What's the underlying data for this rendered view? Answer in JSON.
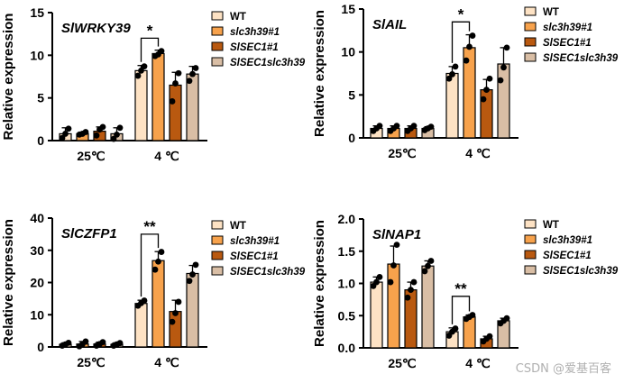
{
  "legend": [
    "WT",
    "slc3h39#1",
    "SlSEC1#1",
    "SlSEC1slc3h39"
  ],
  "colors": [
    "#fde2c4",
    "#f7a24c",
    "#b95910",
    "#d9bea5"
  ],
  "watermark": "CSDN @爱基百客",
  "chart_data": [
    {
      "type": "bar",
      "title": "SlWRKY39",
      "ylabel": "Relative expression",
      "categories": [
        "25℃",
        "4 ℃"
      ],
      "ylim": [
        0,
        15
      ],
      "yticks": [
        0,
        5,
        10,
        15
      ],
      "series": [
        {
          "name": "WT",
          "values": [
            0.8,
            8.2
          ],
          "err": [
            0.7,
            0.6
          ],
          "points": [
            [
              0.3,
              0.8,
              1.4
            ],
            [
              7.6,
              8.2,
              8.7
            ]
          ]
        },
        {
          "name": "slc3h39#1",
          "values": [
            0.8,
            10.2
          ],
          "err": [
            0.2,
            0.4
          ],
          "points": [
            [
              0.7,
              0.8,
              1.0
            ],
            [
              9.9,
              10.1,
              10.5
            ]
          ]
        },
        {
          "name": "SlSEC1#1",
          "values": [
            1.1,
            6.5
          ],
          "err": [
            0.5,
            1.5
          ],
          "points": [
            [
              0.6,
              1.3,
              1.6
            ],
            [
              4.6,
              6.7,
              7.9
            ]
          ]
        },
        {
          "name": "SlSEC1slc3h39",
          "values": [
            0.8,
            7.8
          ],
          "err": [
            0.7,
            0.9
          ],
          "points": [
            [
              0.2,
              0.7,
              1.5
            ],
            [
              7.0,
              7.8,
              8.5
            ]
          ]
        }
      ],
      "significance": [
        {
          "label": "*",
          "group": 1,
          "from": 0,
          "to": 1,
          "y": 12.0
        }
      ]
    },
    {
      "type": "bar",
      "title": "SlAIL",
      "ylabel": "Relative expression",
      "categories": [
        "25℃",
        "4 ℃"
      ],
      "ylim": [
        0,
        15
      ],
      "yticks": [
        0,
        5,
        10,
        15
      ],
      "series": [
        {
          "name": "WT",
          "values": [
            1.1,
            7.5
          ],
          "err": [
            0.3,
            0.8
          ],
          "points": [
            [
              0.8,
              1.1,
              1.4
            ],
            [
              6.9,
              7.4,
              8.3
            ]
          ]
        },
        {
          "name": "slc3h39#1",
          "values": [
            1.1,
            10.5
          ],
          "err": [
            0.3,
            1.5
          ],
          "points": [
            [
              0.8,
              1.1,
              1.4
            ],
            [
              9.0,
              10.6,
              11.9
            ]
          ]
        },
        {
          "name": "SlSEC1#1",
          "values": [
            1.1,
            5.6
          ],
          "err": [
            0.3,
            1.2
          ],
          "points": [
            [
              0.8,
              1.1,
              1.4
            ],
            [
              4.5,
              5.6,
              6.9
            ]
          ]
        },
        {
          "name": "SlSEC1slc3h39",
          "values": [
            1.1,
            8.6
          ],
          "err": [
            0.2,
            1.9
          ],
          "points": [
            [
              0.9,
              1.1,
              1.3
            ],
            [
              6.7,
              8.2,
              10.5
            ]
          ]
        }
      ],
      "significance": [
        {
          "label": "*",
          "group": 1,
          "from": 0,
          "to": 1,
          "y": 13.5
        }
      ]
    },
    {
      "type": "bar",
      "title": "SlCZFP1",
      "ylabel": "Relative expression",
      "categories": [
        "25℃",
        "4 ℃"
      ],
      "ylim": [
        0,
        40
      ],
      "yticks": [
        0,
        10,
        20,
        30,
        40
      ],
      "series": [
        {
          "name": "WT",
          "values": [
            0.8,
            13.5
          ],
          "err": [
            0.5,
            1.0
          ],
          "points": [
            [
              0.4,
              0.8,
              1.3
            ],
            [
              12.8,
              13.6,
              14.4
            ]
          ]
        },
        {
          "name": "slc3h39#1",
          "values": [
            0.9,
            26.8
          ],
          "err": [
            0.8,
            2.8
          ],
          "points": [
            [
              0.2,
              0.9,
              1.7
            ],
            [
              24.0,
              26.5,
              29.5
            ]
          ]
        },
        {
          "name": "SlSEC1#1",
          "values": [
            0.9,
            11.0
          ],
          "err": [
            0.6,
            3.5
          ],
          "points": [
            [
              0.4,
              0.9,
              1.5
            ],
            [
              7.8,
              10.5,
              14.0
            ]
          ]
        },
        {
          "name": "SlSEC1slc3h39",
          "values": [
            0.8,
            22.8
          ],
          "err": [
            0.5,
            2.5
          ],
          "points": [
            [
              0.4,
              0.8,
              1.2
            ],
            [
              20.5,
              22.5,
              25.5
            ]
          ]
        }
      ],
      "significance": [
        {
          "label": "**",
          "group": 1,
          "from": 0,
          "to": 1,
          "y": 35.0
        }
      ]
    },
    {
      "type": "bar",
      "title": "SlNAP1",
      "ylabel": "Relative expression",
      "categories": [
        "25℃",
        "4 ℃"
      ],
      "ylim": [
        0,
        2.0
      ],
      "yticks": [
        0.0,
        0.5,
        1.0,
        1.5,
        2.0
      ],
      "series": [
        {
          "name": "WT",
          "values": [
            1.02,
            0.25
          ],
          "err": [
            0.08,
            0.06
          ],
          "points": [
            [
              0.96,
              1.02,
              1.1
            ],
            [
              0.19,
              0.25,
              0.3
            ]
          ]
        },
        {
          "name": "slc3h39#1",
          "values": [
            1.3,
            0.48
          ],
          "err": [
            0.28,
            0.03
          ],
          "points": [
            [
              1.02,
              1.28,
              1.6
            ],
            [
              0.45,
              0.48,
              0.51
            ]
          ]
        },
        {
          "name": "SlSEC1#1",
          "values": [
            0.9,
            0.14
          ],
          "err": [
            0.12,
            0.04
          ],
          "points": [
            [
              0.78,
              0.9,
              1.02
            ],
            [
              0.1,
              0.14,
              0.18
            ]
          ]
        },
        {
          "name": "SlSEC1slc3h39",
          "values": [
            1.27,
            0.42
          ],
          "err": [
            0.08,
            0.04
          ],
          "points": [
            [
              1.19,
              1.27,
              1.35
            ],
            [
              0.38,
              0.42,
              0.46
            ]
          ]
        }
      ],
      "significance": [
        {
          "label": "**",
          "group": 1,
          "from": 0,
          "to": 1,
          "y": 0.8
        }
      ]
    }
  ]
}
